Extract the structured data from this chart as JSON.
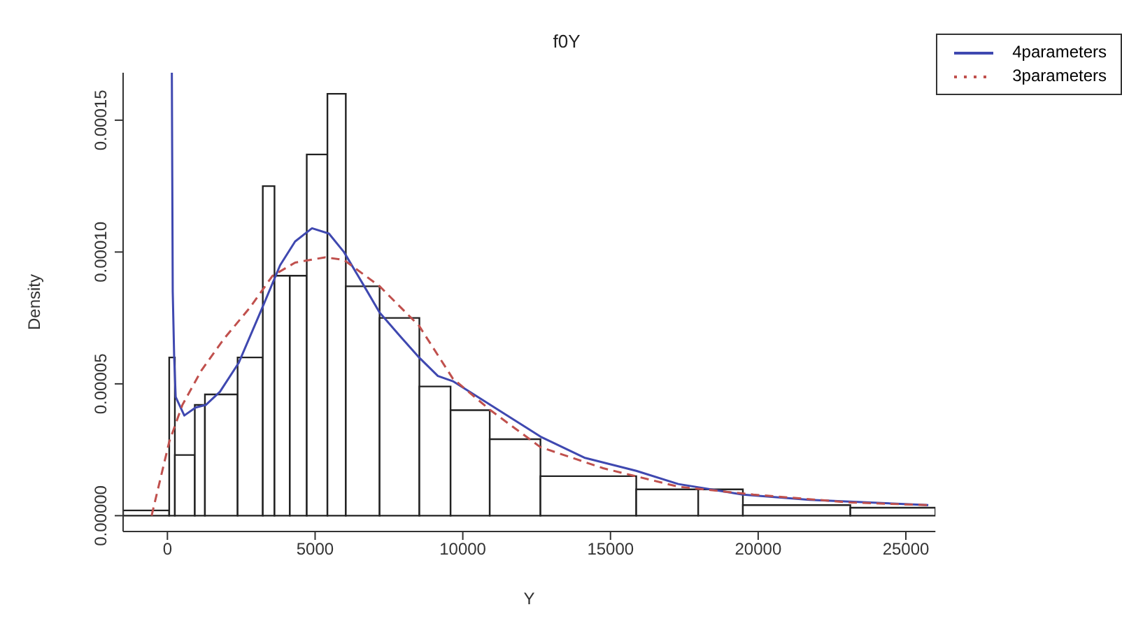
{
  "chart_data": {
    "type": "histogram",
    "title": "f0Y",
    "xlabel": "Y",
    "ylabel": "Density",
    "bins": [
      -1500,
      61,
      252,
      927,
      1270,
      2376,
      3229,
      3625,
      4144,
      4717,
      5417,
      6039,
      7183,
      8530,
      9586,
      10912,
      12629,
      15872,
      17970,
      19482,
      23120,
      26000
    ],
    "values": [
      2e-06,
      6e-05,
      2.3e-05,
      4.2e-05,
      4.6e-05,
      6e-05,
      0.000125,
      9.1e-05,
      9.1e-05,
      0.000137,
      0.00016,
      8.7e-05,
      7.5e-05,
      4.9e-05,
      4e-05,
      2.9e-05,
      1.5e-05,
      1e-05,
      1e-05,
      4e-06,
      3e-06
    ],
    "color": "#ffffff",
    "series": [
      {
        "name": "4parameters",
        "type": "line",
        "color": "#3f48b0",
        "line_style": "solid",
        "x": [
          150,
          180,
          229,
          280,
          572,
          954,
          1298,
          1779,
          2415,
          3178,
          3815,
          4323,
          4895,
          5468,
          5976,
          6612,
          7185,
          7884,
          8520,
          9157,
          9663,
          10935,
          12629,
          14116,
          15872,
          17296,
          19482,
          21747,
          25760
        ],
        "values": [
          0.000168,
          8.5e-05,
          6e-05,
          4.5e-05,
          3.8e-05,
          4.1e-05,
          4.2e-05,
          4.7e-05,
          5.8e-05,
          7.8e-05,
          9.5e-05,
          0.000104,
          0.000109,
          0.000107,
          0.0001,
          8.8e-05,
          7.7e-05,
          6.8e-05,
          6e-05,
          5.3e-05,
          5.1e-05,
          4.2e-05,
          3e-05,
          2.2e-05,
          1.7e-05,
          1.2e-05,
          8e-06,
          6e-06,
          4e-06
        ]
      },
      {
        "name": "3parameters",
        "type": "line",
        "color": "#c0504d",
        "line_style": "dashed",
        "x": [
          -535,
          61,
          507,
          1145,
          1908,
          2797,
          3560,
          4323,
          5341,
          5976,
          7185,
          8520,
          9663,
          10935,
          12629,
          14752,
          17296,
          19838,
          23120,
          25760
        ],
        "values": [
          0,
          2.8e-05,
          4.2e-05,
          5.5e-05,
          6.7e-05,
          7.9e-05,
          9.1e-05,
          9.6e-05,
          9.8e-05,
          9.7e-05,
          8.7e-05,
          7.2e-05,
          5.2e-05,
          4e-05,
          2.6e-05,
          1.8e-05,
          1.1e-05,
          8e-06,
          5e-06,
          4e-06
        ]
      }
    ],
    "xlim": [
      -1500,
      26000
    ],
    "xticks": [
      0,
      5000,
      10000,
      15000,
      20000,
      25000
    ],
    "ylim": [
      -6e-06,
      0.000168
    ],
    "yticks": [
      {
        "value": 0,
        "label": "0.00000"
      },
      {
        "value": 5e-05,
        "label": "0.00005"
      },
      {
        "value": 0.0001,
        "label": "0.00010"
      },
      0.00015
    ],
    "legend": "top right",
    "marker": "none"
  }
}
